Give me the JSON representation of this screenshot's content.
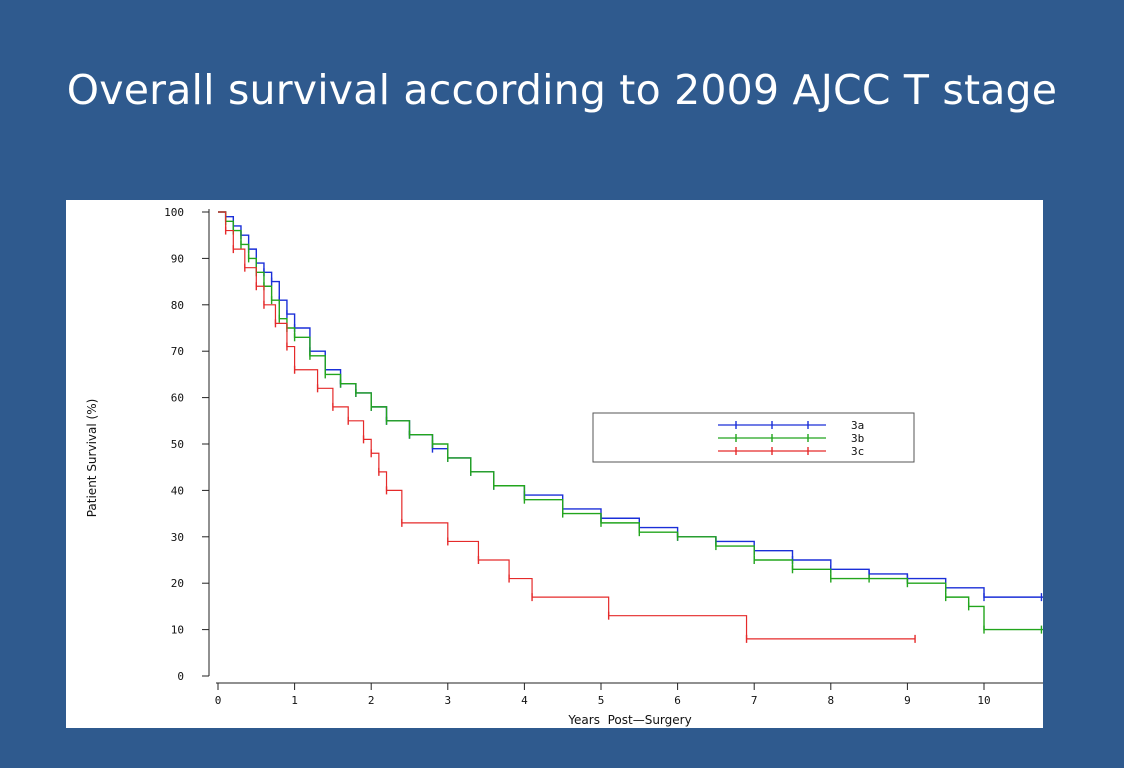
{
  "slide": {
    "title": "Overall survival according to 2009 AJCC T stage"
  },
  "colors": {
    "background": "#2f5a8e",
    "panel": "#ffffff",
    "series_3a": "#1a2fd8",
    "series_3b": "#22a51d",
    "series_3c": "#e52a2a"
  },
  "chart_data": {
    "type": "line",
    "step": true,
    "title": "",
    "xlabel": "Years  Post—Surgery",
    "ylabel": "Patient Survival (%)",
    "xlim": [
      0,
      10.8
    ],
    "ylim": [
      0,
      100
    ],
    "x_ticks": [
      0,
      1,
      2,
      3,
      4,
      5,
      6,
      7,
      8,
      9,
      10
    ],
    "y_ticks": [
      0,
      10,
      20,
      30,
      40,
      50,
      60,
      70,
      80,
      90,
      100
    ],
    "grid": false,
    "legend_position": "right",
    "series": [
      {
        "name": "3a",
        "color": "#1a2fd8",
        "x": [
          0,
          0.1,
          0.2,
          0.3,
          0.4,
          0.5,
          0.6,
          0.7,
          0.8,
          0.9,
          1.0,
          1.2,
          1.4,
          1.6,
          1.8,
          2.0,
          2.2,
          2.5,
          2.8,
          3.0,
          3.3,
          3.6,
          4.0,
          4.5,
          5.0,
          5.5,
          6.0,
          6.5,
          7.0,
          7.5,
          8.0,
          8.5,
          9.0,
          9.5,
          10.0,
          10.8
        ],
        "y": [
          100,
          99,
          97,
          95,
          92,
          89,
          87,
          85,
          81,
          78,
          75,
          70,
          66,
          63,
          61,
          58,
          55,
          52,
          49,
          47,
          44,
          41,
          39,
          36,
          34,
          32,
          30,
          29,
          27,
          25,
          23,
          22,
          21,
          19,
          17,
          17
        ]
      },
      {
        "name": "3b",
        "color": "#22a51d",
        "x": [
          0,
          0.1,
          0.2,
          0.3,
          0.4,
          0.5,
          0.6,
          0.7,
          0.8,
          0.9,
          1.0,
          1.2,
          1.4,
          1.6,
          1.8,
          2.0,
          2.2,
          2.5,
          2.8,
          3.0,
          3.3,
          3.6,
          4.0,
          4.5,
          5.0,
          5.5,
          6.0,
          6.5,
          7.0,
          7.5,
          8.0,
          8.5,
          9.0,
          9.5,
          9.8,
          10.0,
          10.8
        ],
        "y": [
          100,
          98,
          96,
          93,
          90,
          87,
          84,
          81,
          77,
          75,
          73,
          69,
          65,
          63,
          61,
          58,
          55,
          52,
          50,
          47,
          44,
          41,
          38,
          35,
          33,
          31,
          30,
          28,
          25,
          23,
          21,
          21,
          20,
          17,
          15,
          10,
          10
        ]
      },
      {
        "name": "3c",
        "color": "#e52a2a",
        "x": [
          0,
          0.1,
          0.2,
          0.35,
          0.5,
          0.6,
          0.75,
          0.9,
          1.0,
          1.3,
          1.5,
          1.7,
          1.9,
          2.0,
          2.1,
          2.2,
          2.4,
          3.0,
          3.4,
          3.8,
          4.1,
          5.1,
          6.9,
          9.1
        ],
        "y": [
          100,
          96,
          92,
          88,
          84,
          80,
          76,
          71,
          66,
          62,
          58,
          55,
          51,
          48,
          44,
          40,
          33,
          29,
          25,
          21,
          17,
          13,
          8,
          8
        ]
      }
    ]
  }
}
